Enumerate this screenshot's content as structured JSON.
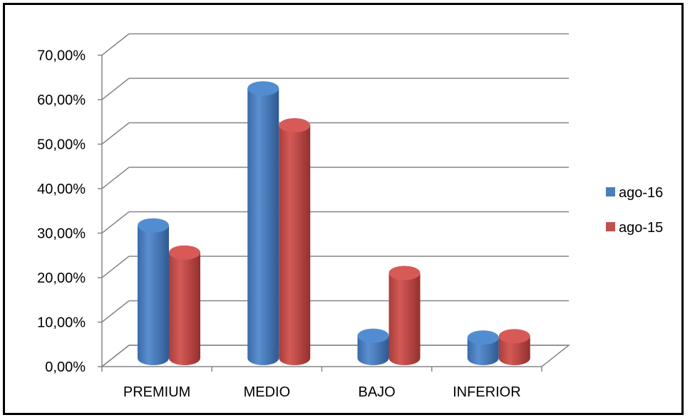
{
  "chart_data": {
    "type": "bar",
    "categories": [
      "PREMIUM",
      "MEDIO",
      "BAJO",
      "INFERIOR"
    ],
    "series": [
      {
        "name": "ago-16",
        "values": [
          29.5,
          60.3,
          4.7,
          4.3
        ],
        "color": "#4a7ebb"
      },
      {
        "name": "ago-15",
        "values": [
          23.4,
          52.0,
          18.8,
          4.6
        ],
        "color": "#c0504d"
      }
    ],
    "title": "",
    "xlabel": "",
    "ylabel": "",
    "ylim": [
      0,
      70
    ],
    "yticks": [
      "0,00%",
      "10,00%",
      "20,00%",
      "30,00%",
      "40,00%",
      "50,00%",
      "60,00%",
      "70,00%"
    ],
    "grid": true,
    "legend_position": "right",
    "style": "3d-cylinder"
  }
}
